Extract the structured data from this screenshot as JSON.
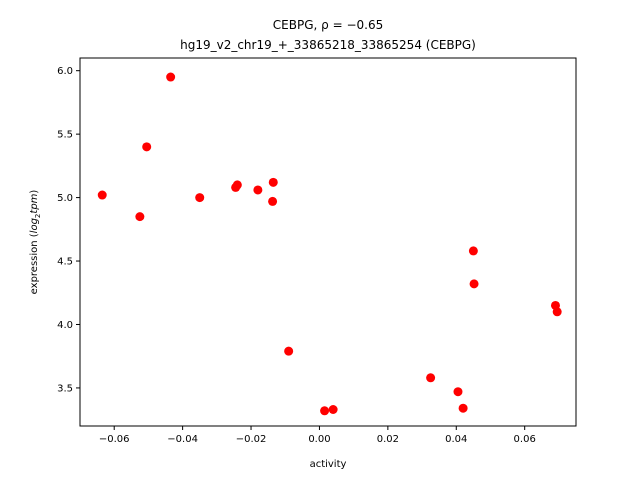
{
  "chart_data": {
    "type": "scatter",
    "title_line1": "CEBPG, ρ = −0.65",
    "title_line2": "hg19_v2_chr19_+_33865218_33865254 (CEBPG)",
    "xlabel": "activity",
    "ylabel_prefix": "expression (",
    "ylabel_math": "log",
    "ylabel_sub": "2",
    "ylabel_math2": "tpm",
    "ylabel_suffix": ")",
    "xlim": [
      -0.07,
      0.075
    ],
    "ylim": [
      3.2,
      6.1
    ],
    "xticks": [
      -0.06,
      -0.04,
      -0.02,
      0.0,
      0.02,
      0.04,
      0.06
    ],
    "xtick_labels": [
      "−0.06",
      "−0.04",
      "−0.02",
      "0.00",
      "0.02",
      "0.04",
      "0.06"
    ],
    "yticks": [
      3.5,
      4.0,
      4.5,
      5.0,
      5.5,
      6.0
    ],
    "ytick_labels": [
      "3.5",
      "4.0",
      "4.5",
      "5.0",
      "5.5",
      "6.0"
    ],
    "grid": false,
    "point_color": "#ff0000",
    "points": [
      {
        "x": -0.0635,
        "y": 5.02
      },
      {
        "x": -0.0525,
        "y": 4.85
      },
      {
        "x": -0.0505,
        "y": 5.4
      },
      {
        "x": -0.0435,
        "y": 5.95
      },
      {
        "x": -0.035,
        "y": 5.0
      },
      {
        "x": -0.0245,
        "y": 5.08
      },
      {
        "x": -0.024,
        "y": 5.1
      },
      {
        "x": -0.018,
        "y": 5.06
      },
      {
        "x": -0.0135,
        "y": 5.12
      },
      {
        "x": -0.0137,
        "y": 4.97
      },
      {
        "x": -0.009,
        "y": 3.79
      },
      {
        "x": 0.0015,
        "y": 3.32
      },
      {
        "x": 0.004,
        "y": 3.33
      },
      {
        "x": 0.0325,
        "y": 3.58
      },
      {
        "x": 0.0405,
        "y": 3.47
      },
      {
        "x": 0.042,
        "y": 3.34
      },
      {
        "x": 0.045,
        "y": 4.58
      },
      {
        "x": 0.0452,
        "y": 4.32
      },
      {
        "x": 0.069,
        "y": 4.15
      },
      {
        "x": 0.0695,
        "y": 4.1
      }
    ]
  }
}
